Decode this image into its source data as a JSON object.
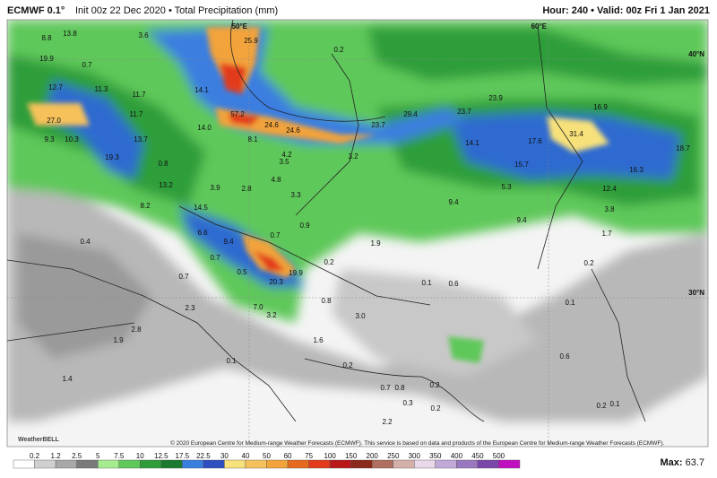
{
  "header": {
    "model": "ECMWF 0.1°",
    "init": "Init 00z 22 Dec 2020 • Total Precipitation (mm)",
    "valid": "Hour: 240 • Valid: 00z Fri 1 Jan 2021"
  },
  "coordinates": [
    "50°E",
    "60°E",
    "40°N",
    "30°N"
  ],
  "map_labels": [
    "8.8",
    "19.9",
    "13.8",
    "3.6",
    "25.9",
    "0.2",
    "0.7",
    "12.7",
    "11.3",
    "11.7",
    "14.1",
    "27.0",
    "11.7",
    "57.2",
    "24.6",
    "24.6",
    "23.7",
    "29.4",
    "23.7",
    "23.9",
    "16.9",
    "9.3",
    "10.3",
    "13.7",
    "14.0",
    "8.1",
    "14.1",
    "17.6",
    "31.4",
    "18.7",
    "19.3",
    "4.2",
    "3.5",
    "3.2",
    "15.7",
    "16.3",
    "0.8",
    "4.8",
    "3.9",
    "2.8",
    "3.3",
    "13.2",
    "5.3",
    "12.4",
    "8.2",
    "14.5",
    "9.4",
    "3.8",
    "9.4",
    "0.9",
    "6.6",
    "0.7",
    "1.9",
    "1.7",
    "0.4",
    "9.4",
    "0.7",
    "0.2",
    "0.2",
    "0.5",
    "19.9",
    "0.7",
    "20.3",
    "0.1",
    "0.6",
    "0.8",
    "0.1",
    "2.3",
    "7.0",
    "3.2",
    "3.0",
    "2.8",
    "1.9",
    "1.6",
    "0.6",
    "0.1",
    "0.2",
    "1.4",
    "0.7",
    "0.8",
    "0.2",
    "0.2",
    "0.1",
    "0.3",
    "0.2",
    "2.2"
  ],
  "legend": {
    "ticks": [
      "0.2",
      "1.2",
      "2.5",
      "5",
      "7.5",
      "10",
      "12.5",
      "17.5",
      "22.5",
      "30",
      "40",
      "50",
      "60",
      "75",
      "100",
      "150",
      "200",
      "250",
      "300",
      "350",
      "400",
      "450",
      "500"
    ],
    "colors": [
      "#ffffff",
      "#d0d0d0",
      "#a8a8a8",
      "#7a7a7a",
      "#a6ec8e",
      "#5ec85a",
      "#2f9e3a",
      "#1b7a2e",
      "#3a7ee0",
      "#2e4fc0",
      "#f7e17a",
      "#f6c15a",
      "#f2a33a",
      "#e66a1e",
      "#e23a1a",
      "#b81818",
      "#8a2a1a",
      "#b07060",
      "#d4b0a8",
      "#e8d8e8",
      "#c0a8d8",
      "#9a78c0",
      "#7a48a8",
      "#c010c0"
    ]
  },
  "footer": {
    "copyright": "© 2020 European Centre for Medium-range Weather Forecasts (ECMWF). This service is based on data and products of the European Centre for Medium-range Weather Forecasts (ECMWF).",
    "logo": "WeatherBELL",
    "max_label": "Max:",
    "max": "63.7"
  }
}
